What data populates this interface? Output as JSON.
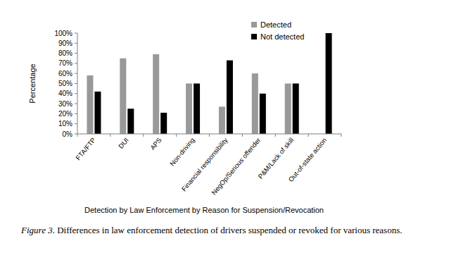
{
  "chart_data": {
    "type": "bar",
    "x_label": "Detection by Law Enforcement by Reason for Suspension/Revocation",
    "y_label": "Percentage",
    "caption_label": "Figure 3.",
    "caption": "Differences in law enforcement detection of drivers suspended or revoked for various reasons.",
    "categories": [
      "FTA/FTP",
      "DUI",
      "APS",
      "Non-driving",
      "Financial responsibility",
      "NegOp/Serious offender",
      "P&M/Lack of skill",
      "Out-of-state action"
    ],
    "series": [
      {
        "name": "Detected",
        "color": "#999999",
        "values": [
          58,
          75,
          79,
          50,
          27,
          60,
          50,
          0
        ]
      },
      {
        "name": "Not detected",
        "color": "#000000",
        "values": [
          42,
          25,
          21,
          50,
          73,
          40,
          50,
          100
        ]
      }
    ],
    "ylim": [
      0,
      100
    ],
    "yticks": [
      {
        "value": 0,
        "label": "0%"
      },
      {
        "value": 10,
        "label": "10%"
      },
      {
        "value": 20,
        "label": "20%"
      },
      {
        "value": 30,
        "label": "30%"
      },
      {
        "value": 40,
        "label": "40%"
      },
      {
        "value": 50,
        "label": "50%"
      },
      {
        "value": 60,
        "label": "60%"
      },
      {
        "value": 70,
        "label": "70%"
      },
      {
        "value": 80,
        "label": "80%"
      },
      {
        "value": 90,
        "label": "90%"
      },
      {
        "value": 100,
        "label": "100%"
      }
    ],
    "grid": false,
    "legend": "top-right"
  }
}
